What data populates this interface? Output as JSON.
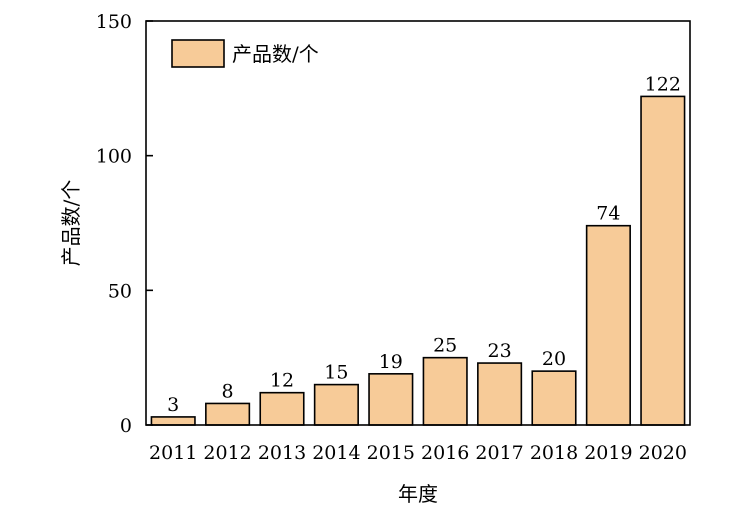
{
  "chart_data": {
    "type": "bar",
    "categories": [
      "2011",
      "2012",
      "2013",
      "2014",
      "2015",
      "2016",
      "2017",
      "2018",
      "2019",
      "2020"
    ],
    "series": [
      {
        "name": "产品数/个",
        "values": [
          3,
          8,
          12,
          15,
          19,
          25,
          23,
          20,
          74,
          122
        ]
      }
    ],
    "data_labels": [
      "3",
      "8",
      "12",
      "15",
      "19",
      "25",
      "23",
      "20",
      "74",
      "122"
    ],
    "title": "",
    "xlabel": "年度",
    "ylabel": "产品数/个",
    "ylim": [
      0,
      150
    ],
    "yticks": [
      0,
      50,
      100,
      150
    ],
    "grid": false,
    "legend_position": "top-left",
    "bar_color": "#F7CB98",
    "edge_color": "#000000"
  }
}
